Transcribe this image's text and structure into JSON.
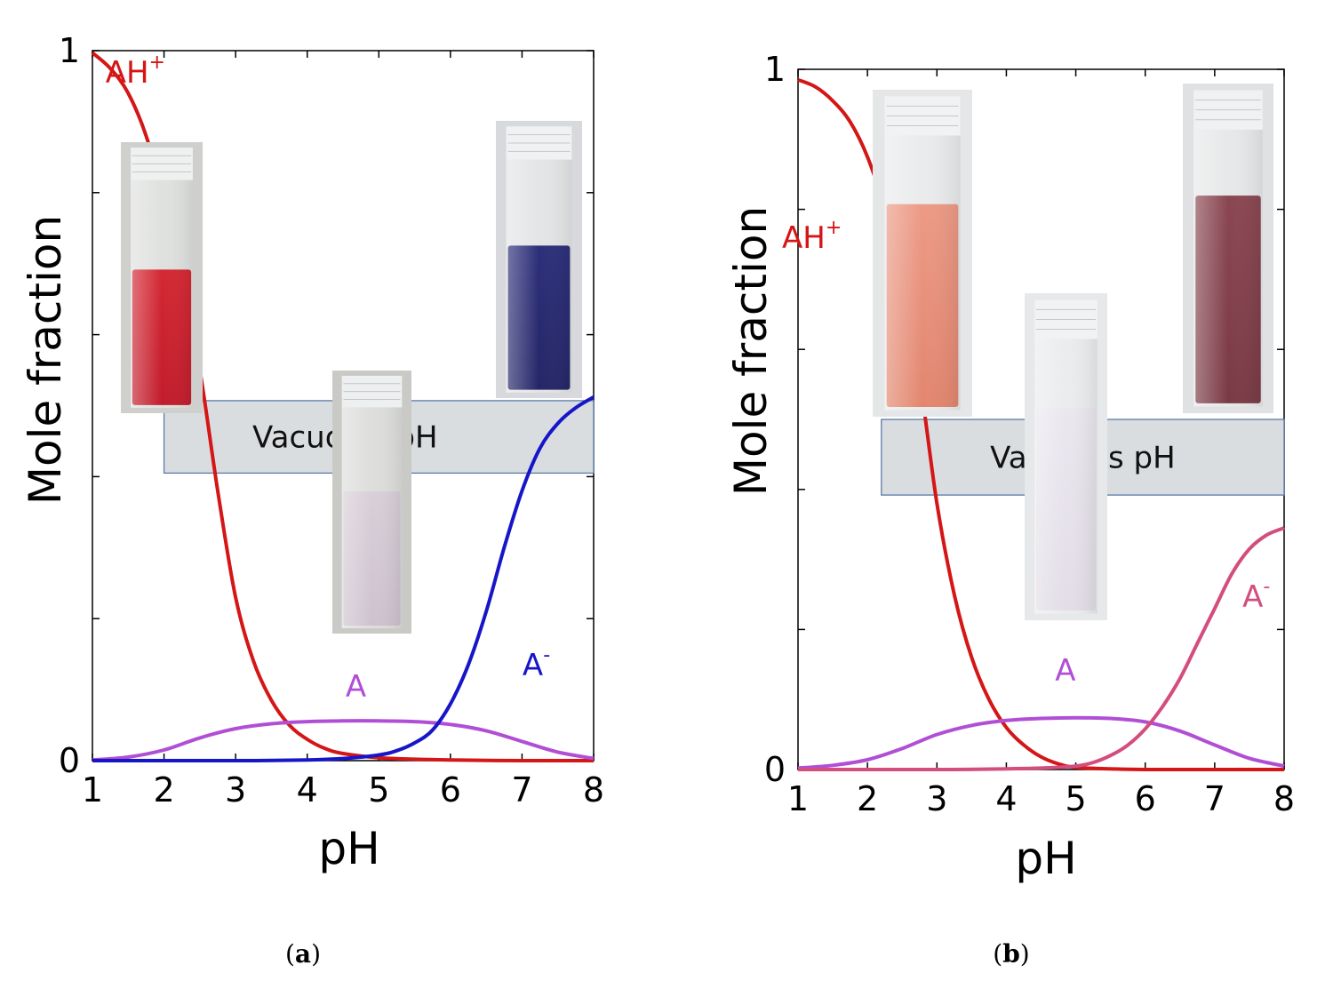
{
  "chart_data": [
    {
      "type": "line",
      "panel_caption_open": "(",
      "panel_caption_letter": "a",
      "panel_caption_close": ")",
      "xlabel": "pH",
      "ylabel": "Mole fraction",
      "xlim": [
        1,
        8
      ],
      "ylim": [
        0,
        1
      ],
      "xticks": [
        1,
        2,
        3,
        4,
        5,
        6,
        7,
        8
      ],
      "yticks": [
        0,
        1
      ],
      "band": {
        "label": "Vacuoles pH",
        "x_range": [
          2,
          8
        ],
        "y_range": [
          0.405,
          0.507
        ],
        "color": "#dadde0"
      },
      "series": [
        {
          "name": "AH",
          "sup": "+",
          "color": "#d41616",
          "x": [
            1,
            1.25,
            1.5,
            1.75,
            2,
            2.25,
            2.5,
            2.75,
            3,
            3.25,
            3.5,
            3.75,
            4,
            4.25,
            4.5,
            5,
            5.5,
            6,
            7,
            8
          ],
          "y": [
            0.997,
            0.975,
            0.94,
            0.88,
            0.79,
            0.68,
            0.55,
            0.38,
            0.23,
            0.14,
            0.085,
            0.05,
            0.03,
            0.017,
            0.01,
            0.004,
            0.002,
            0.001,
            0.0,
            0.0
          ]
        },
        {
          "name": "A",
          "sup": "",
          "color": "#b04fd6",
          "x": [
            1,
            1.5,
            2,
            2.5,
            3,
            3.5,
            4,
            4.5,
            5,
            5.5,
            6,
            6.5,
            7,
            7.5,
            8
          ],
          "y": [
            0.001,
            0.005,
            0.015,
            0.032,
            0.045,
            0.052,
            0.055,
            0.056,
            0.056,
            0.055,
            0.051,
            0.042,
            0.027,
            0.012,
            0.003
          ]
        },
        {
          "name": "A",
          "sup": "-",
          "color": "#1616c8",
          "x": [
            1,
            3,
            4,
            4.5,
            5,
            5.25,
            5.5,
            5.75,
            6,
            6.25,
            6.5,
            6.75,
            7,
            7.25,
            7.5,
            7.75,
            8
          ],
          "y": [
            0,
            0,
            0.001,
            0.003,
            0.008,
            0.014,
            0.025,
            0.043,
            0.08,
            0.135,
            0.21,
            0.3,
            0.38,
            0.44,
            0.475,
            0.497,
            0.512
          ]
        }
      ],
      "annotations": [
        {
          "text": "AH",
          "sup": "+",
          "series": 0,
          "x": 1.6,
          "y": 0.955
        },
        {
          "text": "A",
          "sup": "",
          "series": 1,
          "x": 4.68,
          "y": 0.09
        },
        {
          "text": "A",
          "sup": "-",
          "series": 2,
          "x": 7.2,
          "y": 0.12
        }
      ],
      "photos": [
        {
          "name": "cuvette-red",
          "liquid": "#d42833",
          "liquid_to": "#c21c2b",
          "liquid_top": 0.47,
          "tint": "#cfd0cd"
        },
        {
          "name": "cuvette-pale",
          "liquid": "#d8cfd8",
          "liquid_to": "#cfc2cf",
          "liquid_top": 0.46,
          "tint": "#c9cac6"
        },
        {
          "name": "cuvette-blue",
          "liquid": "#2d2f7a",
          "liquid_to": "#242668",
          "liquid_top": 0.45,
          "tint": "#d8d9dc"
        }
      ]
    },
    {
      "type": "line",
      "panel_caption_open": "(",
      "panel_caption_letter": "b",
      "panel_caption_close": ")",
      "xlabel": "pH",
      "ylabel": "Mole fraction",
      "xlim": [
        1,
        8
      ],
      "ylim": [
        0,
        1
      ],
      "xticks": [
        1,
        2,
        3,
        4,
        5,
        6,
        7,
        8
      ],
      "yticks": [
        0,
        1
      ],
      "band": {
        "label": "Vacuoles pH",
        "x_range": [
          2.2,
          8
        ],
        "y_range": [
          0.392,
          0.5
        ],
        "color": "#dadde0"
      },
      "series": [
        {
          "name": "AH",
          "sup": "+",
          "color": "#d41616",
          "x": [
            1,
            1.25,
            1.5,
            1.75,
            2,
            2.25,
            2.5,
            2.75,
            3,
            3.25,
            3.5,
            3.75,
            4,
            4.25,
            4.5,
            4.75,
            5,
            5.5,
            6,
            7,
            8
          ],
          "y": [
            0.985,
            0.975,
            0.955,
            0.925,
            0.875,
            0.8,
            0.7,
            0.56,
            0.38,
            0.25,
            0.16,
            0.1,
            0.06,
            0.035,
            0.018,
            0.008,
            0.003,
            0.001,
            0.0,
            0.0,
            0.0
          ]
        },
        {
          "name": "A",
          "sup": "",
          "color": "#b04fd6",
          "x": [
            1,
            1.5,
            2,
            2.5,
            3,
            3.5,
            4,
            4.5,
            5,
            5.5,
            6,
            6.5,
            7,
            7.5,
            8
          ],
          "y": [
            0.002,
            0.006,
            0.014,
            0.03,
            0.05,
            0.063,
            0.07,
            0.073,
            0.074,
            0.073,
            0.068,
            0.055,
            0.035,
            0.016,
            0.005
          ]
        },
        {
          "name": "A",
          "sup": "-",
          "color": "#d34d7e",
          "x": [
            1,
            3,
            4,
            4.5,
            5,
            5.25,
            5.5,
            5.75,
            6,
            6.25,
            6.5,
            6.75,
            7,
            7.25,
            7.5,
            7.75,
            8
          ],
          "y": [
            0,
            0,
            0.001,
            0.002,
            0.005,
            0.01,
            0.02,
            0.035,
            0.058,
            0.09,
            0.13,
            0.18,
            0.23,
            0.28,
            0.315,
            0.335,
            0.345
          ]
        }
      ],
      "annotations": [
        {
          "text": "AH",
          "sup": "+",
          "series": 0,
          "x": 1.2,
          "y": 0.745
        },
        {
          "text": "A",
          "sup": "",
          "series": 1,
          "x": 4.85,
          "y": 0.127
        },
        {
          "text": "A",
          "sup": "-",
          "series": 2,
          "x": 7.6,
          "y": 0.232
        }
      ],
      "photos": [
        {
          "name": "cuvette-salmon",
          "liquid": "#ec9a86",
          "liquid_to": "#e3866f",
          "liquid_top": 0.35,
          "tint": "#e4e6e8"
        },
        {
          "name": "cuvette-clear",
          "liquid": "#ebe7ef",
          "liquid_to": "#e2dde6",
          "liquid_top": 0.35,
          "tint": "#e6e8ea"
        },
        {
          "name": "cuvette-maroon",
          "liquid": "#8a4752",
          "liquid_to": "#7a3a45",
          "liquid_top": 0.34,
          "tint": "#dfe1e3"
        }
      ]
    }
  ]
}
